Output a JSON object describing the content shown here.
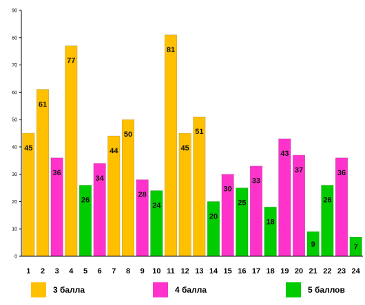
{
  "chart_data": {
    "type": "bar",
    "title": "",
    "xlabel": "",
    "ylabel": "",
    "ylim": [
      0,
      90
    ],
    "yticks": [
      0,
      10,
      20,
      30,
      40,
      50,
      60,
      70,
      80,
      90
    ],
    "grid": false,
    "legend_position": "bottom",
    "categories": [
      "1",
      "2",
      "3",
      "4",
      "5",
      "6",
      "7",
      "8",
      "9",
      "10",
      "11",
      "12",
      "13",
      "14",
      "15",
      "16",
      "17",
      "18",
      "19",
      "20",
      "21",
      "22",
      "23",
      "24"
    ],
    "values": [
      45,
      61,
      36,
      77,
      26,
      34,
      44,
      50,
      28,
      24,
      81,
      45,
      51,
      20,
      30,
      25,
      33,
      18,
      43,
      37,
      9,
      26,
      36,
      7
    ],
    "groups": [
      "g3",
      "g3",
      "g4",
      "g3",
      "g5",
      "g4",
      "g3",
      "g3",
      "g4",
      "g5",
      "g3",
      "g3",
      "g3",
      "g5",
      "g4",
      "g5",
      "g4",
      "g5",
      "g4",
      "g4",
      "g5",
      "g5",
      "g4",
      "g5"
    ],
    "legend": [
      {
        "key": "g3",
        "label": "3 балла",
        "color": "#FFC000"
      },
      {
        "key": "g4",
        "label": "4 балла",
        "color": "#FF33CC"
      },
      {
        "key": "g5",
        "label": "5 баллов",
        "color": "#00CC00"
      }
    ]
  }
}
